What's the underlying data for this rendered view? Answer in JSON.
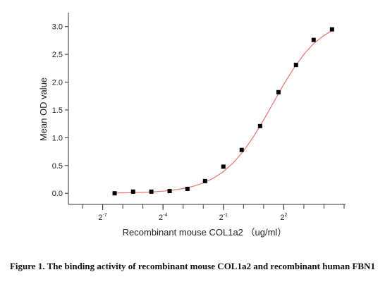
{
  "chart_data": {
    "type": "scatter",
    "x_label": "Recombinant mouse COL1a2 （ug/ml）",
    "y_label": "Mean OD value",
    "x": [
      0.0118,
      0.0223,
      0.0418,
      0.0785,
      0.145,
      0.266,
      0.5,
      0.94,
      1.77,
      3.34,
      6.1,
      11.2,
      21.1
    ],
    "values": [
      0.0,
      0.03,
      0.03,
      0.04,
      0.08,
      0.22,
      0.48,
      0.78,
      1.21,
      1.82,
      2.31,
      2.76,
      2.95
    ],
    "color": "#000000",
    "fit": {
      "color": "#e8736f",
      "x": [
        0.011,
        0.0156,
        0.0221,
        0.03125,
        0.0442,
        0.0625,
        0.0884,
        0.125,
        0.177,
        0.25,
        0.354,
        0.5,
        0.707,
        1,
        1.414,
        2,
        2.83,
        4,
        5.66,
        8,
        11.31,
        16,
        22.63
      ],
      "values": [
        0.005,
        0.008,
        0.012,
        0.017,
        0.026,
        0.038,
        0.057,
        0.085,
        0.126,
        0.186,
        0.27,
        0.39,
        0.55,
        0.76,
        1.02,
        1.32,
        1.64,
        1.96,
        2.25,
        2.5,
        2.7,
        2.84,
        2.95
      ]
    },
    "xscale": "log2",
    "xlim": [
      0.0024,
      33.6
    ],
    "xticks": [
      {
        "value": 0.0078125,
        "label": "2",
        "superscript": "-7"
      },
      {
        "value": 0.0625,
        "label": "2",
        "superscript": "-4"
      },
      {
        "value": 0.5,
        "label": "2",
        "superscript": "-1"
      },
      {
        "value": 4,
        "label": "2",
        "superscript": "2"
      }
    ],
    "ylim": [
      -0.2,
      3.25
    ],
    "yticks": [
      {
        "value": 0,
        "label": "0.0"
      },
      {
        "value": 0.5,
        "label": "0.5"
      },
      {
        "value": 1,
        "label": "1.0"
      },
      {
        "value": 1.5,
        "label": "1.5"
      },
      {
        "value": 2,
        "label": "2.0"
      },
      {
        "value": 2.5,
        "label": "2.5"
      },
      {
        "value": 3,
        "label": "3.0"
      }
    ],
    "caption": "Figure 1. The binding activity of recombinant mouse COL1a2 and recombinant human FBN1"
  }
}
